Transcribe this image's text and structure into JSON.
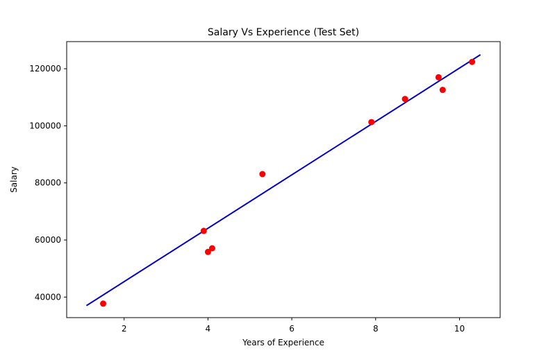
{
  "chart_data": {
    "type": "scatter",
    "title": "Salary Vs Experience (Test Set)",
    "xlabel": "Years of Experience",
    "ylabel": "Salary",
    "xlim": [
      0.63,
      10.97
    ],
    "ylim": [
      32800,
      129500
    ],
    "x_ticks": [
      2,
      4,
      6,
      8,
      10
    ],
    "x_tick_labels": [
      "2",
      "4",
      "6",
      "8",
      "10"
    ],
    "y_ticks": [
      40000,
      60000,
      80000,
      100000,
      120000
    ],
    "y_tick_labels": [
      "40000",
      "60000",
      "80000",
      "100000",
      "120000"
    ],
    "grid": false,
    "colors": {
      "points": "#ff0000",
      "line": "#0000cc",
      "axes": "#000000"
    },
    "series": [
      {
        "type": "scatter",
        "x": [
          1.5,
          3.9,
          4.0,
          4.1,
          5.3,
          7.9,
          8.7,
          9.5,
          9.6,
          10.3
        ],
        "y": [
          37700,
          63200,
          55800,
          57100,
          83100,
          101300,
          109400,
          117000,
          112600,
          122400
        ]
      },
      {
        "type": "line",
        "x": [
          1.1,
          10.5
        ],
        "y": [
          37000,
          124900
        ]
      }
    ]
  }
}
